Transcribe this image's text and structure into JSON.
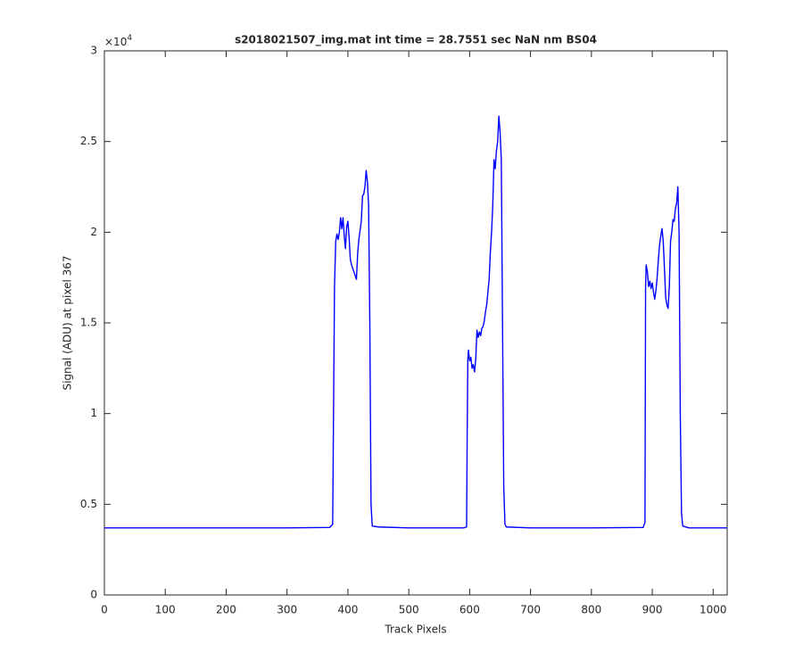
{
  "chart_data": {
    "type": "line",
    "title": "s2018021507_img.mat int time = 28.7551 sec  NaN nm BS04",
    "xlabel": "Track Pixels",
    "ylabel": "Signal (ADU) at pixel 367",
    "y_multiplier": {
      "base": "×10",
      "exponent": "4"
    },
    "x": [
      0,
      100,
      200,
      300,
      370,
      375,
      378,
      380,
      382,
      384,
      386,
      388,
      390,
      392,
      394,
      396,
      398,
      400,
      402,
      404,
      406,
      408,
      410,
      412,
      414,
      416,
      418,
      420,
      422,
      424,
      426,
      428,
      430,
      432,
      434,
      436,
      438,
      440,
      450,
      500,
      590,
      595,
      596,
      597,
      598,
      600,
      602,
      604,
      606,
      608,
      610,
      612,
      614,
      616,
      618,
      620,
      622,
      624,
      626,
      628,
      630,
      632,
      634,
      636,
      638,
      640,
      642,
      644,
      646,
      648,
      650,
      652,
      654,
      656,
      658,
      660,
      700,
      800,
      885,
      888,
      889,
      890,
      892,
      894,
      896,
      898,
      900,
      902,
      904,
      906,
      908,
      910,
      912,
      914,
      916,
      918,
      920,
      922,
      924,
      926,
      928,
      930,
      932,
      934,
      936,
      938,
      940,
      942,
      944,
      946,
      948,
      950,
      960,
      1023
    ],
    "series": [
      {
        "color": "#0000ff",
        "values": [
          3700,
          3700,
          3700,
          3700,
          3720,
          3900,
          17000,
          19500,
          19900,
          19600,
          20000,
          20800,
          20200,
          20800,
          19800,
          19100,
          20300,
          20600,
          19700,
          18500,
          18200,
          18000,
          17800,
          17600,
          17400,
          18800,
          19600,
          20100,
          20600,
          22000,
          22100,
          22500,
          23400,
          22800,
          21500,
          15000,
          5000,
          3800,
          3750,
          3700,
          3700,
          3750,
          9000,
          13000,
          13500,
          12900,
          13100,
          12500,
          12700,
          12300,
          13000,
          14600,
          14200,
          14500,
          14300,
          14700,
          14800,
          15100,
          15600,
          16000,
          16700,
          17400,
          18900,
          20000,
          21500,
          24000,
          23500,
          24500,
          25000,
          26400,
          25500,
          24000,
          15000,
          6000,
          3900,
          3750,
          3700,
          3700,
          3720,
          4000,
          17000,
          18200,
          17800,
          17000,
          17300,
          16900,
          17200,
          16700,
          16300,
          16800,
          17500,
          18500,
          19300,
          19800,
          20200,
          19500,
          18000,
          16400,
          16000,
          15800,
          17000,
          19500,
          20000,
          20700,
          20600,
          21300,
          21600,
          22500,
          20000,
          10000,
          4500,
          3800,
          3700,
          3700
        ]
      }
    ],
    "xlim": [
      0,
      1023
    ],
    "xticks": [
      0,
      100,
      200,
      300,
      400,
      500,
      600,
      700,
      800,
      900,
      1000
    ],
    "ylim": [
      0,
      30000
    ],
    "yticks": [
      0,
      {
        "value": 5000,
        "label": "0.5"
      },
      {
        "value": 10000,
        "label": "1"
      },
      {
        "value": 15000,
        "label": "1.5"
      },
      {
        "value": 20000,
        "label": "2"
      },
      {
        "value": 25000,
        "label": "2.5"
      },
      {
        "value": 30000,
        "label": "3"
      }
    ],
    "grid": false
  }
}
